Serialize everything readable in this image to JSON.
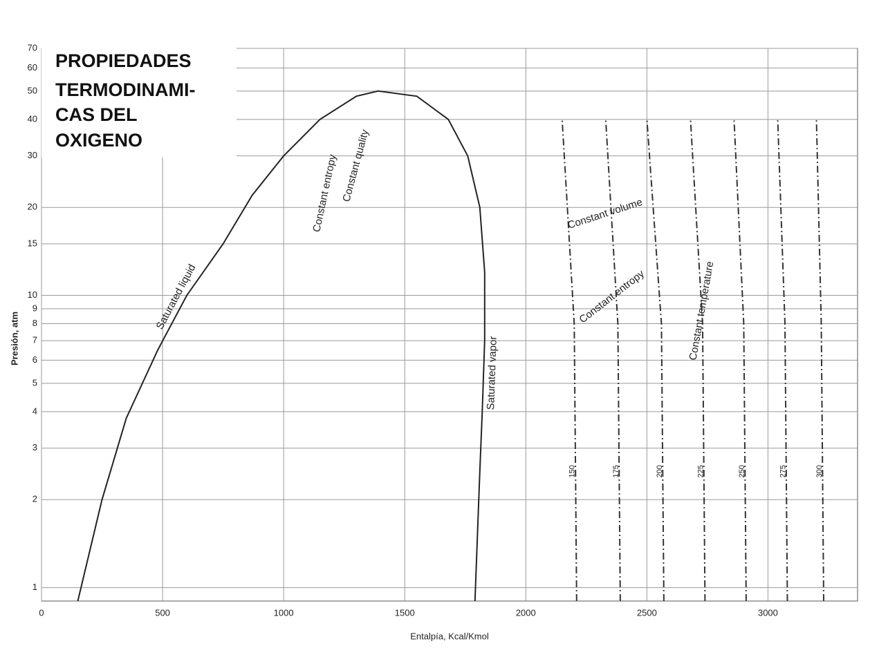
{
  "chart_data": {
    "type": "line",
    "title_lines": [
      "PROPIEDADES",
      "TERMODINAMI-",
      "CAS DEL",
      "OXIGENO"
    ],
    "x_label": "Entalpía, Kcal/Kmol",
    "y_label": "Presión, atm",
    "log_y": true,
    "grid": true,
    "xlim": [
      0,
      3370
    ],
    "ylim": [
      0.9,
      70
    ],
    "xticks": [
      0,
      500,
      1000,
      1500,
      2000,
      2500,
      3000
    ],
    "yticks": [
      1,
      2,
      3,
      4,
      5,
      6,
      7,
      8,
      9,
      10,
      15,
      20,
      30,
      40,
      50,
      60,
      70
    ],
    "curves": [
      {
        "x": [
          150,
          250,
          350,
          480,
          600,
          750,
          870,
          1000,
          1150,
          1300,
          1390,
          1550,
          1680,
          1760,
          1810,
          1830,
          1830,
          1820,
          1810,
          1800,
          1790
        ],
        "y": [
          0.9,
          2,
          3.8,
          6.5,
          10,
          15,
          22,
          30,
          40,
          48,
          50,
          48,
          40,
          30,
          20,
          12,
          7,
          4,
          2.5,
          1.5,
          0.9
        ],
        "color": "#222"
      },
      {
        "label": "150",
        "x": [
          2210,
          2200,
          2150
        ],
        "y": [
          0.9,
          8,
          40
        ],
        "color": "#333"
      },
      {
        "label": "175",
        "x": [
          2390,
          2380,
          2330
        ],
        "y": [
          0.9,
          8,
          40
        ],
        "color": "#333"
      },
      {
        "label": "200",
        "x": [
          2570,
          2560,
          2500
        ],
        "y": [
          0.9,
          8,
          40
        ],
        "color": "#333"
      },
      {
        "label": "225",
        "x": [
          2740,
          2730,
          2680
        ],
        "y": [
          0.9,
          8,
          40
        ],
        "color": "#333"
      },
      {
        "label": "250",
        "x": [
          2910,
          2900,
          2860
        ],
        "y": [
          0.9,
          8,
          40
        ],
        "color": "#333"
      },
      {
        "label": "275",
        "x": [
          3080,
          3070,
          3040
        ],
        "y": [
          0.9,
          8,
          40
        ],
        "color": "#333"
      },
      {
        "label": "300",
        "x": [
          3230,
          3220,
          3200
        ],
        "y": [
          0.9,
          8,
          40
        ],
        "color": "#333"
      }
    ],
    "annotations": [
      "Saturated liquid",
      "Constant entropy",
      "Constant quality",
      "Saturated vapor",
      "Constant volume",
      "Constant entropy",
      "Constant temperature"
    ]
  }
}
